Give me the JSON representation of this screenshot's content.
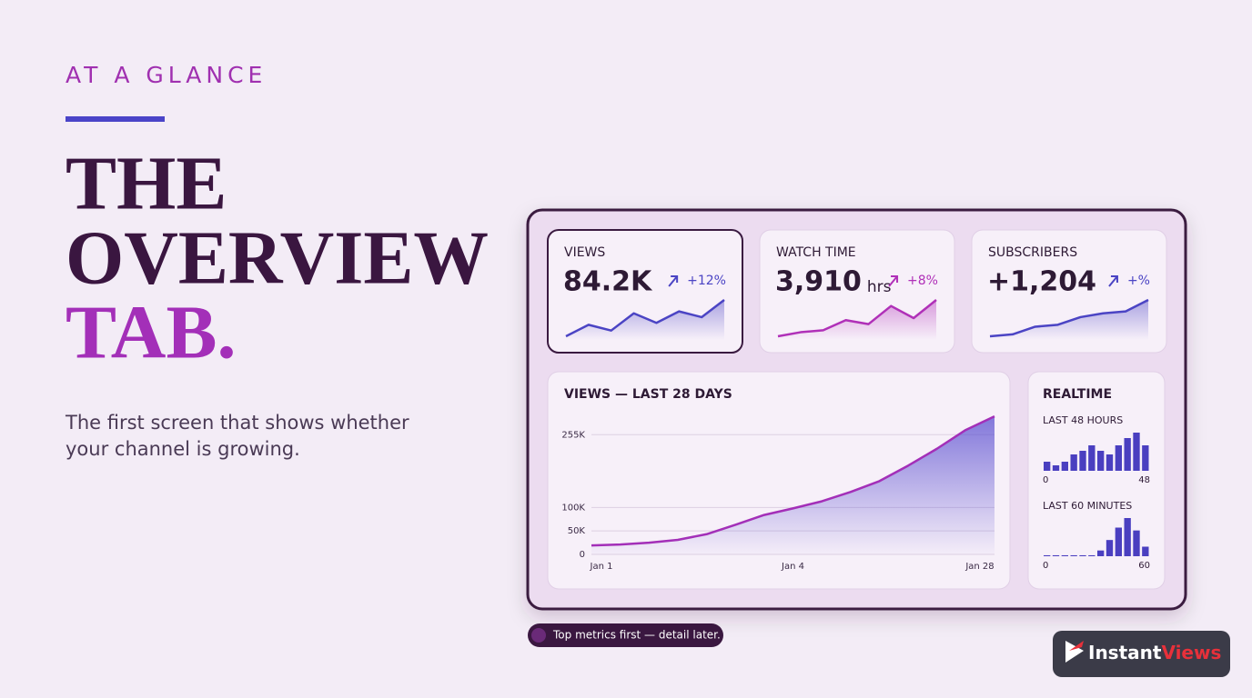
{
  "hero": {
    "eyebrow": "AT A GLANCE",
    "title_lines": [
      "THE",
      "OVERVIEW",
      "TAB."
    ],
    "subtitle_lines": [
      "The first screen that shows whether",
      "your channel is growing."
    ]
  },
  "dashboard": {
    "cards": [
      {
        "label": "VIEWS",
        "value": "84.2K",
        "change": "+12%",
        "color": "#4b44c4",
        "trend": [
          10,
          22,
          16,
          34,
          24,
          36,
          30,
          48
        ]
      },
      {
        "label": "WATCH TIME",
        "value": "3,910",
        "unit": "hrs",
        "change": "+8%",
        "color": "#b030b8",
        "trend": [
          8,
          12,
          14,
          24,
          20,
          38,
          26,
          44
        ]
      },
      {
        "label": "SUBSCRIBERS",
        "value": "+1,204",
        "change": "+%",
        "color": "#4b44c4",
        "trend": [
          6,
          8,
          16,
          18,
          26,
          30,
          32,
          44
        ]
      }
    ],
    "views_chart": {
      "type": "area",
      "title": "VIEWS — LAST 28 DAYS",
      "categories": [
        "Jan 1",
        null,
        null,
        null,
        null,
        null,
        null,
        "Jan 4",
        null,
        null,
        null,
        null,
        null,
        null,
        "Jan 28"
      ],
      "values": [
        19000,
        21000,
        25000,
        31000,
        43000,
        63000,
        84000,
        98000,
        113000,
        133000,
        156000,
        189000,
        225000,
        265000,
        294000
      ],
      "ylim": [
        0,
        300000
      ],
      "yticks": [
        0,
        {
          "value": 50000,
          "label": "50K"
        },
        {
          "value": 100000,
          "label": "100K"
        },
        {
          "value": 255000,
          "label": "255K"
        }
      ],
      "grid": true,
      "color": "#a32fb8",
      "fill": "#5b4fd0"
    },
    "realtime": {
      "title": "REALTIME",
      "color": "#4a3fc0",
      "panels": [
        {
          "title": "LAST 48 HOURS",
          "categories": [
            "0",
            null,
            null,
            null,
            null,
            null,
            null,
            null,
            null,
            null,
            null,
            "48"
          ],
          "values": [
            10,
            6,
            10,
            18,
            22,
            28,
            22,
            18,
            28,
            36,
            42,
            28
          ]
        },
        {
          "title": "LAST 60 MINUTES",
          "categories": [
            "0",
            null,
            null,
            null,
            null,
            null,
            null,
            null,
            null,
            null,
            null,
            "60"
          ],
          "values": [
            1,
            1,
            1,
            1,
            1,
            1,
            6,
            17,
            30,
            40,
            27,
            10
          ]
        }
      ]
    }
  },
  "footnote": "Top metrics first — detail later.",
  "logo": {
    "first": "Instant",
    "second": "Views"
  }
}
